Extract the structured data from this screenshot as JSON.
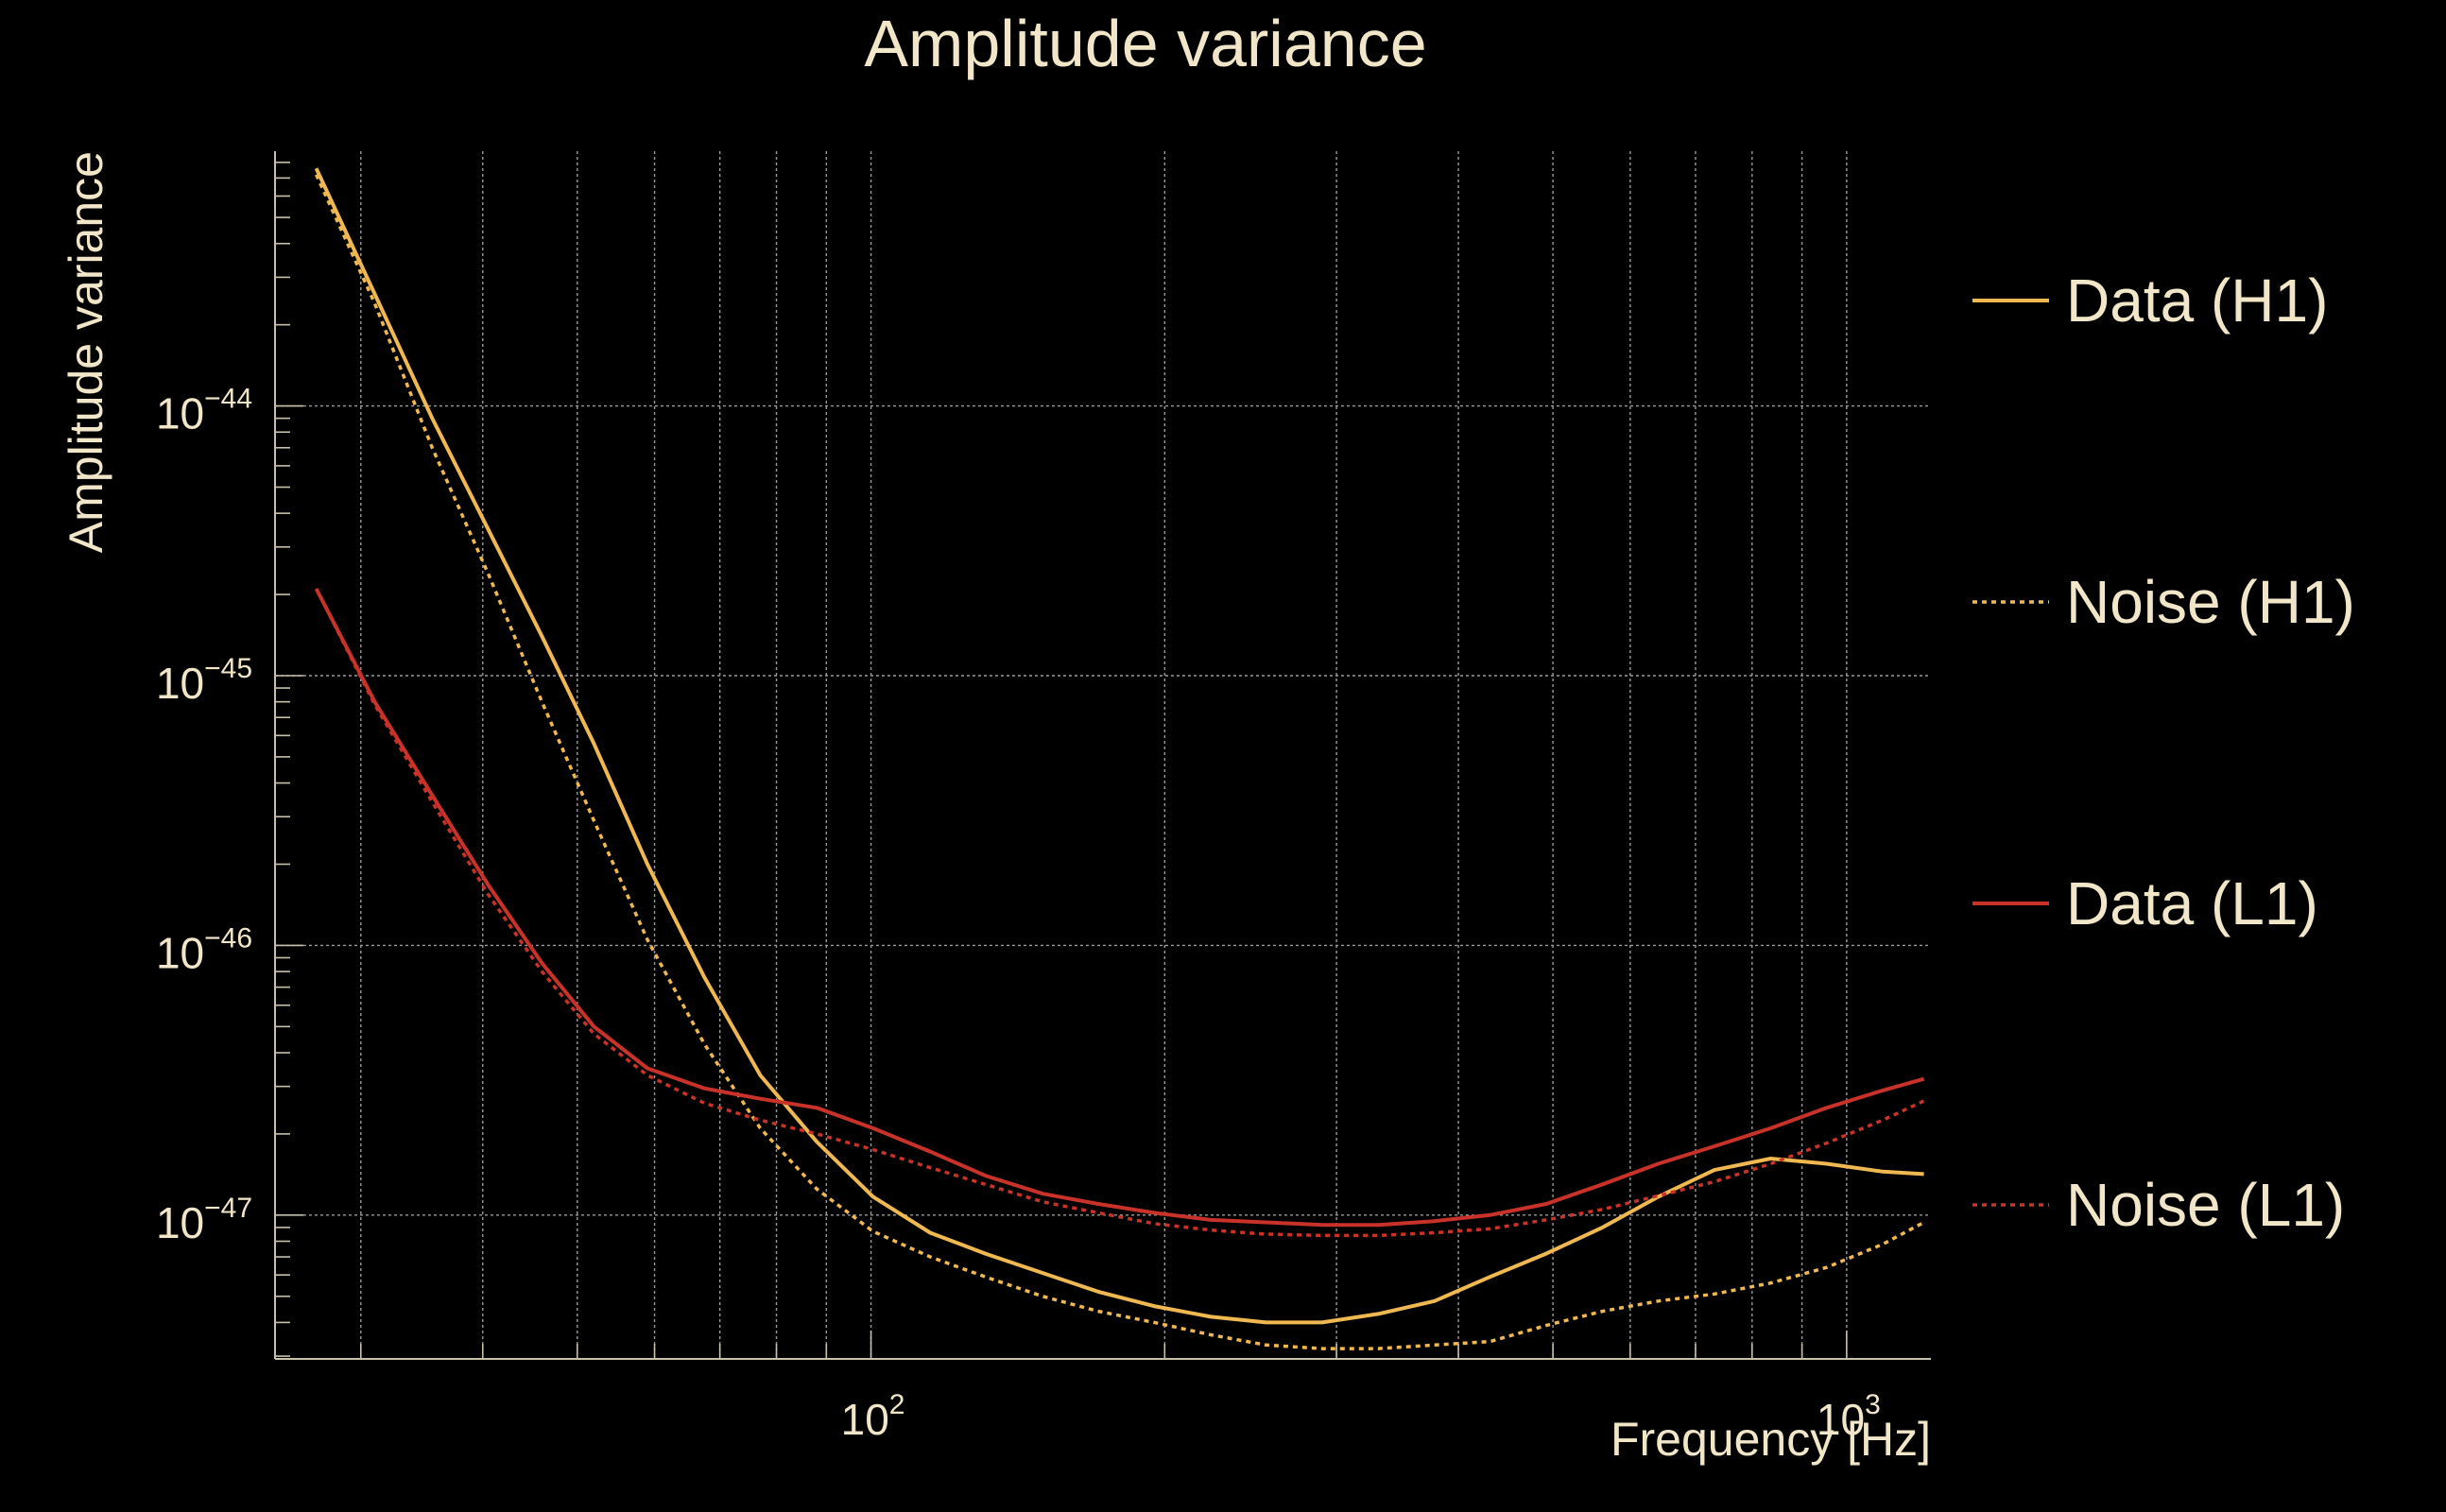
{
  "chart_data": {
    "type": "line",
    "title": "Amplitude variance",
    "xlabel": "Frequency [Hz]",
    "ylabel": "Amplitude variance",
    "x_scale": "log",
    "y_scale": "log",
    "xlim": [
      24.5,
      1220
    ],
    "ylim": [
      2.93e-48,
      8.8e-44
    ],
    "grid": true,
    "legend_position": "right",
    "x_ticks": [
      {
        "base": "10",
        "exp": "2",
        "value": 100
      },
      {
        "base": "10",
        "exp": "3",
        "value": 1000
      }
    ],
    "y_ticks": [
      {
        "base": "10",
        "exp": "−44",
        "value": 1e-44
      },
      {
        "base": "10",
        "exp": "−45",
        "value": 1e-45
      },
      {
        "base": "10",
        "exp": "−46",
        "value": 1e-46
      },
      {
        "base": "10",
        "exp": "−47",
        "value": 1e-47
      }
    ],
    "colors": {
      "background": "#000000",
      "text": "#f2e6c8",
      "grid": "#9a9a9a",
      "axis": "#c8c0aa",
      "h1": "#f0b850",
      "l1": "#c83228"
    },
    "series": [
      {
        "name": "Data (H1)",
        "style": "solid",
        "color": "#f0b850",
        "x": [
          27,
          31,
          35.5,
          40.5,
          46,
          52,
          59,
          67.5,
          77,
          88,
          100.5,
          115,
          131,
          150,
          171,
          195,
          223,
          254,
          290,
          331,
          378,
          431,
          492,
          562,
          641,
          732,
          836,
          954,
          1089,
          1200
        ],
        "y": [
          7.6e-44,
          2.6e-44,
          9e-45,
          3.5e-45,
          1.4e-45,
          5.6e-46,
          2e-46,
          7.6e-47,
          3.3e-47,
          1.87e-47,
          1.17e-47,
          8.6e-48,
          7.2e-48,
          6.1e-48,
          5.2e-48,
          4.6e-48,
          4.2e-48,
          4e-48,
          4e-48,
          4.3e-48,
          4.8e-48,
          5.9e-48,
          7.2e-48,
          9e-48,
          1.17e-47,
          1.47e-47,
          1.62e-47,
          1.55e-47,
          1.45e-47,
          1.42e-47
        ]
      },
      {
        "name": "Noise (H1)",
        "style": "dotted",
        "color": "#f0b850",
        "x": [
          27,
          31,
          35.5,
          40.5,
          46,
          52,
          59,
          67.5,
          77,
          88,
          100.5,
          115,
          131,
          150,
          171,
          195,
          223,
          254,
          290,
          331,
          378,
          431,
          492,
          562,
          641,
          732,
          836,
          954,
          1089,
          1200
        ],
        "y": [
          7.2e-44,
          2.4e-44,
          7e-45,
          2.4e-45,
          8e-46,
          2.9e-46,
          1.05e-46,
          4.3e-47,
          2.1e-47,
          1.25e-47,
          8.7e-48,
          7e-48,
          5.9e-48,
          5e-48,
          4.4e-48,
          4e-48,
          3.6e-48,
          3.3e-48,
          3.2e-48,
          3.2e-48,
          3.3e-48,
          3.4e-48,
          3.9e-48,
          4.4e-48,
          4.8e-48,
          5.1e-48,
          5.6e-48,
          6.4e-48,
          7.8e-48,
          9.4e-48
        ]
      },
      {
        "name": "Data (L1)",
        "style": "solid",
        "color": "#c83228",
        "x": [
          27,
          31,
          35.5,
          40.5,
          46,
          52,
          59,
          67.5,
          77,
          88,
          100.5,
          115,
          131,
          150,
          171,
          195,
          223,
          254,
          290,
          331,
          378,
          431,
          492,
          562,
          641,
          732,
          836,
          954,
          1089,
          1200
        ],
        "y": [
          2.1e-45,
          8e-46,
          3.6e-46,
          1.68e-46,
          8.6e-47,
          5e-47,
          3.5e-47,
          2.95e-47,
          2.7e-47,
          2.5e-47,
          2.1e-47,
          1.72e-47,
          1.4e-47,
          1.2e-47,
          1.1e-47,
          1.02e-47,
          9.6e-48,
          9.4e-48,
          9.2e-48,
          9.2e-48,
          9.5e-48,
          1e-47,
          1.1e-47,
          1.3e-47,
          1.55e-47,
          1.8e-47,
          2.1e-47,
          2.5e-47,
          2.9e-47,
          3.2e-47
        ]
      },
      {
        "name": "Noise (L1)",
        "style": "dotted",
        "color": "#c83228",
        "x": [
          27,
          31,
          35.5,
          40.5,
          46,
          52,
          59,
          67.5,
          77,
          88,
          100.5,
          115,
          131,
          150,
          171,
          195,
          223,
          254,
          290,
          331,
          378,
          431,
          492,
          562,
          641,
          732,
          836,
          954,
          1089,
          1200
        ],
        "y": [
          2.1e-45,
          7.8e-46,
          3.4e-46,
          1.55e-46,
          8e-47,
          4.7e-47,
          3.3e-47,
          2.6e-47,
          2.25e-47,
          2e-47,
          1.75e-47,
          1.5e-47,
          1.3e-47,
          1.12e-47,
          1.02e-47,
          9.3e-48,
          8.8e-48,
          8.5e-48,
          8.4e-48,
          8.4e-48,
          8.6e-48,
          8.9e-48,
          9.6e-48,
          1.05e-47,
          1.18e-47,
          1.33e-47,
          1.55e-47,
          1.85e-47,
          2.25e-47,
          2.65e-47
        ]
      }
    ]
  }
}
